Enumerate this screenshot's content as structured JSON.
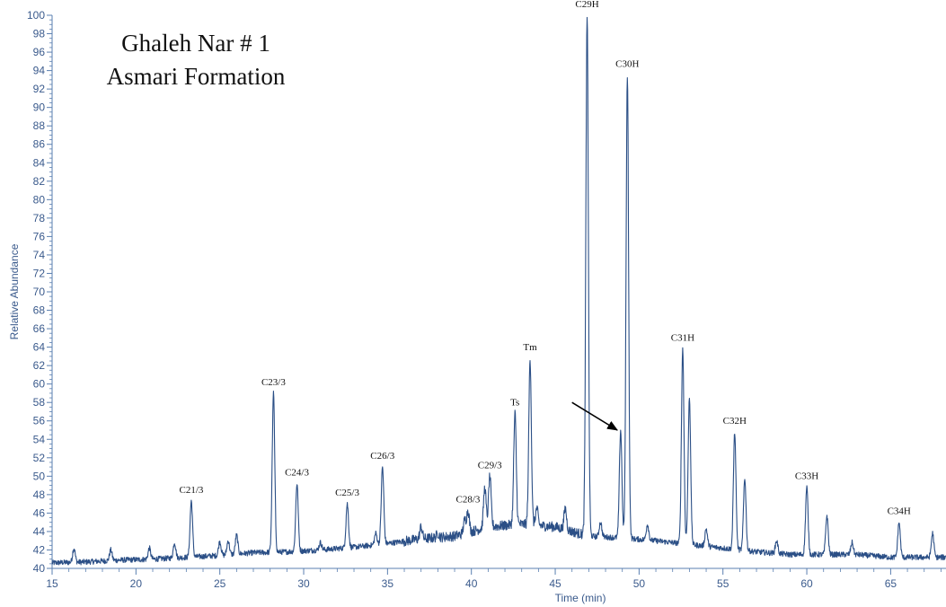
{
  "chart_data": {
    "type": "line",
    "title_lines": [
      "Ghaleh Nar # 1",
      "Asmari Formation"
    ],
    "xlabel": "Time (min)",
    "ylabel": "Relative Abundance",
    "xlim": [
      15,
      68.3
    ],
    "ylim": [
      40,
      100
    ],
    "x_ticks": [
      15,
      20,
      25,
      30,
      35,
      40,
      45,
      50,
      55,
      60,
      65
    ],
    "y_ticks": [
      40,
      42,
      44,
      46,
      48,
      50,
      52,
      54,
      56,
      58,
      60,
      62,
      64,
      66,
      68,
      70,
      72,
      74,
      76,
      78,
      80,
      82,
      84,
      86,
      88,
      90,
      92,
      94,
      96,
      98,
      100
    ],
    "grid": false,
    "colors": {
      "line": "#2b4f86",
      "axis": "#5a7fb0",
      "text": "#3a5a8c",
      "labels": "#111111"
    },
    "peaks": [
      {
        "label": "C21/3",
        "x": 23.3,
        "y": 47.3
      },
      {
        "label": "C23/3",
        "x": 28.2,
        "y": 59.0
      },
      {
        "label": "C24/3",
        "x": 29.6,
        "y": 49.2
      },
      {
        "label": "C25/3",
        "x": 32.6,
        "y": 47.0
      },
      {
        "label": "C26/3",
        "x": 34.7,
        "y": 51.0
      },
      {
        "label": "C28/3",
        "x": 39.8,
        "y": 46.3
      },
      {
        "label": "C29/3",
        "x": 41.1,
        "y": 50.0
      },
      {
        "label": "Ts",
        "x": 42.6,
        "y": 56.8
      },
      {
        "label": "Tm",
        "x": 43.5,
        "y": 62.8
      },
      {
        "label": "C29H",
        "x": 46.9,
        "y": 100.0
      },
      {
        "label": "C30H",
        "x": 49.3,
        "y": 93.5
      },
      {
        "label": "C31H",
        "x": 52.6,
        "y": 63.8
      },
      {
        "label": "C32H",
        "x": 55.7,
        "y": 54.8
      },
      {
        "label": "C33H",
        "x": 60.0,
        "y": 48.8
      },
      {
        "label": "C34H",
        "x": 65.5,
        "y": 45.0
      }
    ],
    "unlabeled_peaks": [
      {
        "x": 16.3,
        "y": 42.2
      },
      {
        "x": 18.5,
        "y": 42.0
      },
      {
        "x": 20.8,
        "y": 42.2
      },
      {
        "x": 22.3,
        "y": 42.8
      },
      {
        "x": 25.0,
        "y": 42.9
      },
      {
        "x": 25.5,
        "y": 43.0
      },
      {
        "x": 26.0,
        "y": 43.6
      },
      {
        "x": 31.0,
        "y": 42.8
      },
      {
        "x": 34.3,
        "y": 43.8
      },
      {
        "x": 37.0,
        "y": 44.5
      },
      {
        "x": 38.0,
        "y": 43.8
      },
      {
        "x": 39.6,
        "y": 45.2
      },
      {
        "x": 40.8,
        "y": 48.8
      },
      {
        "x": 43.9,
        "y": 46.5
      },
      {
        "x": 45.6,
        "y": 46.5
      },
      {
        "x": 47.7,
        "y": 45.0
      },
      {
        "x": 48.9,
        "y": 55.0
      },
      {
        "x": 50.5,
        "y": 44.8
      },
      {
        "x": 53.0,
        "y": 58.5
      },
      {
        "x": 54.0,
        "y": 44.3
      },
      {
        "x": 56.3,
        "y": 49.8
      },
      {
        "x": 58.2,
        "y": 43.0
      },
      {
        "x": 61.2,
        "y": 45.7
      },
      {
        "x": 62.7,
        "y": 42.8
      },
      {
        "x": 67.5,
        "y": 43.8
      }
    ],
    "baseline": [
      [
        15.0,
        40.6
      ],
      [
        17.0,
        40.7
      ],
      [
        19.0,
        40.9
      ],
      [
        21.0,
        41.0
      ],
      [
        23.0,
        41.2
      ],
      [
        25.0,
        41.4
      ],
      [
        27.0,
        41.7
      ],
      [
        29.0,
        41.8
      ],
      [
        31.0,
        42.0
      ],
      [
        33.0,
        42.3
      ],
      [
        35.0,
        42.7
      ],
      [
        37.0,
        43.2
      ],
      [
        39.0,
        43.5
      ],
      [
        41.0,
        44.5
      ],
      [
        43.0,
        44.8
      ],
      [
        45.0,
        44.5
      ],
      [
        47.0,
        43.5
      ],
      [
        49.0,
        43.3
      ],
      [
        51.0,
        43.0
      ],
      [
        53.0,
        42.6
      ],
      [
        55.0,
        42.2
      ],
      [
        57.0,
        41.8
      ],
      [
        59.0,
        41.5
      ],
      [
        61.0,
        41.5
      ],
      [
        63.0,
        41.5
      ],
      [
        65.0,
        41.2
      ],
      [
        68.3,
        41.2
      ]
    ],
    "arrow": {
      "from": {
        "x": 46.0,
        "y": 58.0
      },
      "to": {
        "x": 48.7,
        "y": 55.0
      }
    }
  }
}
